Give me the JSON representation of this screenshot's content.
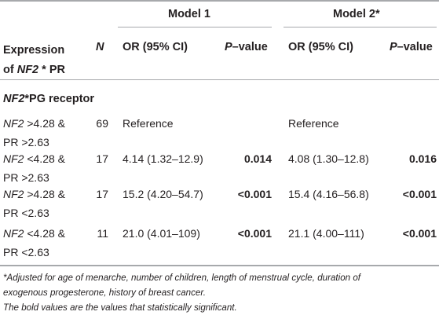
{
  "table": {
    "header": {
      "model1": "Model 1",
      "model2": "Model 2*",
      "expression_line1": "Expression",
      "expression_line2_pre": "of ",
      "expression_line2_gene": "NF2",
      "expression_line2_post": " * PR",
      "n": "N",
      "or1": "OR (95% CI)",
      "p1_italic": "P",
      "p1_rest": "–value",
      "or2": "OR (95% CI)",
      "p2_italic": "P",
      "p2_rest": "–value"
    },
    "section": {
      "gene": "NF2",
      "rest": "*PG receptor"
    },
    "rows": [
      {
        "gene1": "NF2",
        "cond1": " >4.28 &",
        "cond2": "PR >2.63",
        "n": "69",
        "or1": "Reference",
        "p1": "",
        "or2": "Reference",
        "p2": ""
      },
      {
        "gene1": "NF2",
        "cond1": " <4.28 &",
        "cond2": "PR >2.63",
        "n": "17",
        "or1": "4.14 (1.32–12.9)",
        "p1": "0.014",
        "or2": "4.08 (1.30–12.8)",
        "p2": "0.016"
      },
      {
        "gene1": "NF2",
        "cond1": " >4.28 &",
        "cond2": "PR <2.63",
        "n": "17",
        "or1": "15.2 (4.20–54.7)",
        "p1": "<0.001",
        "or2": "15.4 (4.16–56.8)",
        "p2": "<0.001"
      },
      {
        "gene1": "NF2",
        "cond1": " <4.28 &",
        "cond2": "PR <2.63",
        "n": "11",
        "or1": "21.0 (4.01–109)",
        "p1": "<0.001",
        "or2": "21.1 (4.00–111)",
        "p2": "<0.001"
      }
    ],
    "footnotes": {
      "line1": "*Adjusted for age of menarche, number of children, length of menstrual cycle, duration of",
      "line2": "exogenous progesterone, history of breast cancer.",
      "line3": "The bold values are the values that statistically significant."
    }
  }
}
